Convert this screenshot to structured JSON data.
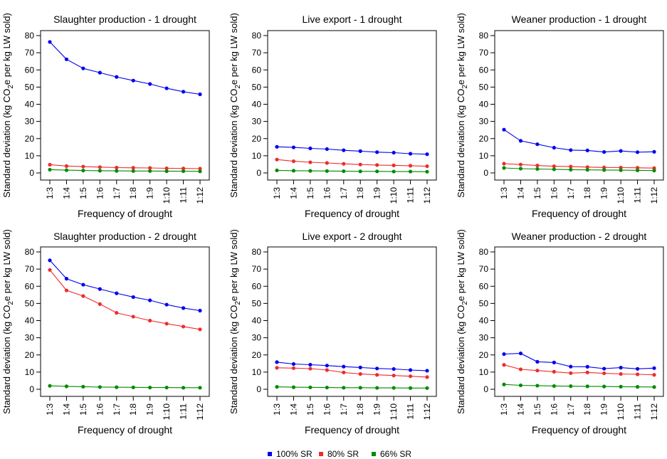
{
  "legend": [
    {
      "label": "100% SR",
      "color": "#0000ee"
    },
    {
      "label": "80% SR",
      "color": "#ee2c2c"
    },
    {
      "label": "66% SR",
      "color": "#008b00"
    }
  ],
  "chart_data": [
    {
      "type": "line",
      "title": "Slaughter production - 1 drought",
      "xlabel": "Frequency of drought",
      "ylabel": "Standard deviation (kg CO2e per kg LW sold)",
      "ylim": [
        0,
        80
      ],
      "yticks": [
        "0",
        "10",
        "20",
        "30",
        "40",
        "50",
        "60",
        "70",
        "80"
      ],
      "categories": [
        "1:3",
        "1:4",
        "1:5",
        "1:6",
        "1:7",
        "1:8",
        "1:9",
        "1:10",
        "1:11",
        "1:12"
      ],
      "series": [
        {
          "name": "100% SR",
          "values": [
            76.3,
            66.2,
            60.9,
            58.4,
            55.9,
            53.8,
            51.8,
            49.3,
            47.3,
            45.8
          ]
        },
        {
          "name": "80% SR",
          "values": [
            4.8,
            4.0,
            3.7,
            3.4,
            3.1,
            3.0,
            2.9,
            2.7,
            2.6,
            2.5
          ]
        },
        {
          "name": "66% SR",
          "values": [
            1.9,
            1.6,
            1.4,
            1.3,
            1.2,
            1.1,
            1.1,
            1.0,
            1.0,
            0.9
          ]
        }
      ]
    },
    {
      "type": "line",
      "title": "Live export - 1 drought",
      "xlabel": "Frequency of drought",
      "ylabel": "Standard deviation (kg CO2e per kg LW sold)",
      "ylim": [
        0,
        80
      ],
      "yticks": [
        "0",
        "10",
        "20",
        "30",
        "40",
        "50",
        "60",
        "70",
        "80"
      ],
      "categories": [
        "1:3",
        "1:4",
        "1:5",
        "1:6",
        "1:7",
        "1:8",
        "1:9",
        "1:10",
        "1:11",
        "1:12"
      ],
      "series": [
        {
          "name": "100% SR",
          "values": [
            15.2,
            14.9,
            14.3,
            13.9,
            13.2,
            12.7,
            12.1,
            11.8,
            11.2,
            10.9
          ]
        },
        {
          "name": "80% SR",
          "values": [
            7.8,
            6.8,
            6.2,
            5.8,
            5.3,
            4.9,
            4.6,
            4.4,
            4.2,
            3.9
          ]
        },
        {
          "name": "66% SR",
          "values": [
            1.5,
            1.3,
            1.2,
            1.1,
            1.0,
            0.9,
            0.9,
            0.8,
            0.8,
            0.7
          ]
        }
      ]
    },
    {
      "type": "line",
      "title": "Weaner production - 1 drought",
      "xlabel": "Frequency of drought",
      "ylabel": "Standard deviation (kg CO2e per kg LW sold)",
      "ylim": [
        0,
        80
      ],
      "yticks": [
        "0",
        "10",
        "20",
        "30",
        "40",
        "50",
        "60",
        "70",
        "80"
      ],
      "categories": [
        "1:3",
        "1:4",
        "1:5",
        "1:6",
        "1:7",
        "1:8",
        "1:9",
        "1:10",
        "1:11",
        "1:12"
      ],
      "series": [
        {
          "name": "100% SR",
          "values": [
            25.2,
            18.7,
            16.7,
            14.7,
            13.3,
            13.1,
            12.2,
            12.8,
            12.1,
            12.3
          ]
        },
        {
          "name": "80% SR",
          "values": [
            5.4,
            4.9,
            4.3,
            3.9,
            3.7,
            3.4,
            3.2,
            3.1,
            3.0,
            2.8
          ]
        },
        {
          "name": "66% SR",
          "values": [
            2.9,
            2.5,
            2.3,
            2.1,
            1.9,
            1.8,
            1.7,
            1.6,
            1.5,
            1.4
          ]
        }
      ]
    },
    {
      "type": "line",
      "title": "Slaughter production - 2 drought",
      "xlabel": "Frequency of drought",
      "ylabel": "Standard deviation (kg CO2e per kg LW sold)",
      "ylim": [
        0,
        80
      ],
      "yticks": [
        "0",
        "10",
        "20",
        "30",
        "40",
        "50",
        "60",
        "70",
        "80"
      ],
      "categories": [
        "1:3",
        "1:4",
        "1:5",
        "1:6",
        "1:7",
        "1:8",
        "1:9",
        "1:10",
        "1:11",
        "1:12"
      ],
      "series": [
        {
          "name": "100% SR",
          "values": [
            75.1,
            64.4,
            60.9,
            58.4,
            55.9,
            53.7,
            51.8,
            49.3,
            47.3,
            45.8
          ]
        },
        {
          "name": "80% SR",
          "values": [
            69.5,
            57.6,
            54.3,
            49.6,
            44.5,
            42.3,
            40.0,
            38.2,
            36.5,
            34.9
          ]
        },
        {
          "name": "66% SR",
          "values": [
            2.0,
            1.7,
            1.5,
            1.3,
            1.2,
            1.1,
            1.0,
            1.0,
            0.9,
            0.9
          ]
        }
      ]
    },
    {
      "type": "line",
      "title": "Live export - 2 drought",
      "xlabel": "Frequency of drought",
      "ylabel": "Standard deviation (kg CO2e per kg LW sold)",
      "ylim": [
        0,
        80
      ],
      "yticks": [
        "0",
        "10",
        "20",
        "30",
        "40",
        "50",
        "60",
        "70",
        "80"
      ],
      "categories": [
        "1:3",
        "1:4",
        "1:5",
        "1:6",
        "1:7",
        "1:8",
        "1:9",
        "1:10",
        "1:11",
        "1:12"
      ],
      "series": [
        {
          "name": "100% SR",
          "values": [
            15.8,
            14.7,
            14.3,
            13.8,
            13.2,
            12.7,
            12.1,
            11.8,
            11.2,
            10.8
          ]
        },
        {
          "name": "80% SR",
          "values": [
            12.5,
            12.3,
            12.0,
            11.2,
            9.8,
            8.9,
            8.4,
            8.0,
            7.6,
            7.1
          ]
        },
        {
          "name": "66% SR",
          "values": [
            1.4,
            1.2,
            1.1,
            1.0,
            0.9,
            0.9,
            0.8,
            0.8,
            0.7,
            0.7
          ]
        }
      ]
    },
    {
      "type": "line",
      "title": "Weaner production - 2 drought",
      "xlabel": "Frequency of drought",
      "ylabel": "Standard deviation (kg CO2e per kg LW sold)",
      "ylim": [
        0,
        80
      ],
      "yticks": [
        "0",
        "10",
        "20",
        "30",
        "40",
        "50",
        "60",
        "70",
        "80"
      ],
      "categories": [
        "1:3",
        "1:4",
        "1:5",
        "1:6",
        "1:7",
        "1:8",
        "1:9",
        "1:10",
        "1:11",
        "1:12"
      ],
      "series": [
        {
          "name": "100% SR",
          "values": [
            20.5,
            20.9,
            16.0,
            15.6,
            13.2,
            13.1,
            12.0,
            12.6,
            11.9,
            12.3
          ]
        },
        {
          "name": "80% SR",
          "values": [
            14.2,
            11.6,
            10.9,
            10.2,
            9.4,
            9.8,
            9.3,
            8.9,
            8.7,
            8.4
          ]
        },
        {
          "name": "66% SR",
          "values": [
            2.8,
            2.3,
            2.1,
            1.9,
            1.8,
            1.7,
            1.6,
            1.5,
            1.4,
            1.3
          ]
        }
      ]
    }
  ]
}
